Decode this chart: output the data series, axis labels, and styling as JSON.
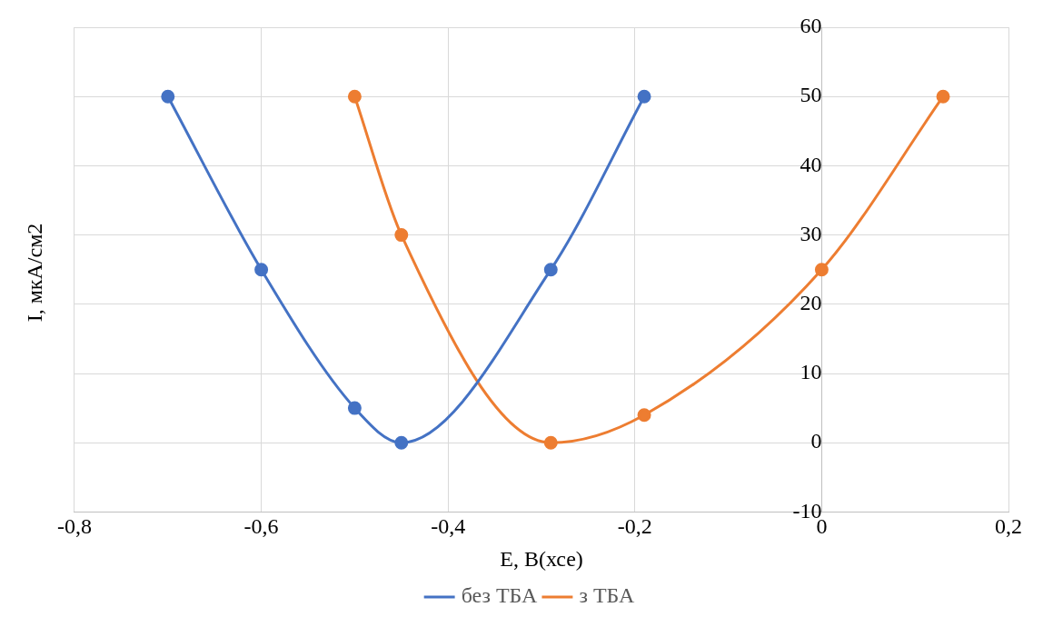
{
  "chart_data": {
    "type": "line",
    "xlabel": "E, В(хсе)",
    "ylabel": "I, мкА/см2",
    "xlim": [
      -0.8,
      0.2
    ],
    "xticks": [
      {
        "value": -0.8,
        "label": "-0,8"
      },
      {
        "value": -0.6,
        "label": "-0,6"
      },
      {
        "value": -0.4,
        "label": "-0,4"
      },
      {
        "value": -0.2,
        "label": "-0,2"
      },
      {
        "value": 0,
        "label": "0"
      },
      {
        "value": 0.2,
        "label": "0,2"
      }
    ],
    "ylim": [
      -10,
      60
    ],
    "yticks": [
      -10,
      0,
      10,
      20,
      30,
      40,
      50,
      60
    ],
    "grid": true,
    "legend": "bottom",
    "marker": "circle",
    "line_style": "solid",
    "series": [
      {
        "name": "без ТБА",
        "color": "#4472c4",
        "x": [
          -0.7,
          -0.6,
          -0.5,
          -0.45,
          -0.29,
          -0.19
        ],
        "values": [
          50,
          25,
          5,
          0,
          25,
          50
        ]
      },
      {
        "name": "з ТБА",
        "color": "#ed7d31",
        "x": [
          -0.5,
          -0.45,
          -0.29,
          -0.19,
          0,
          0.13
        ],
        "values": [
          50,
          30,
          0,
          4,
          25,
          50
        ]
      }
    ]
  }
}
